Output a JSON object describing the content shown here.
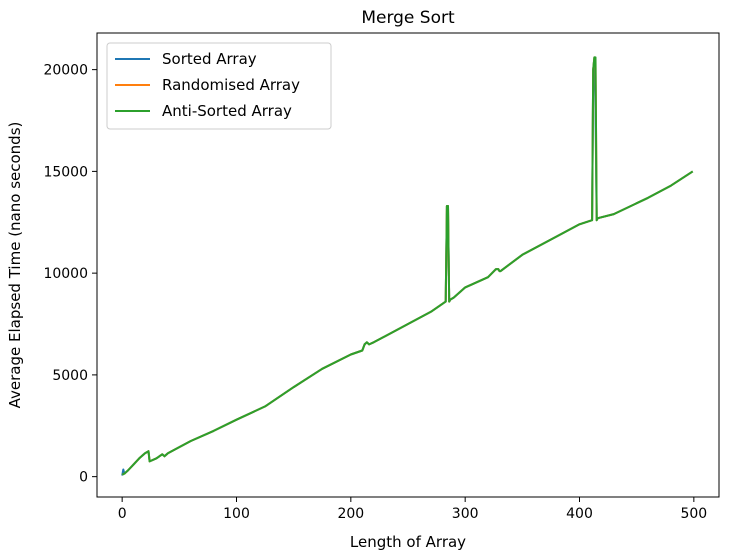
{
  "chart_data": {
    "type": "line",
    "title": "Merge Sort",
    "xlabel": "Length of Array",
    "ylabel": "Average Elapsed Time (nano seconds)",
    "xlim": [
      -22,
      522
    ],
    "ylim": [
      -1000,
      21800
    ],
    "xticks": [
      0,
      100,
      200,
      300,
      400,
      500
    ],
    "yticks": [
      0,
      5000,
      10000,
      15000,
      20000
    ],
    "grid": false,
    "legend_position": "top-left",
    "series": [
      {
        "name": "Sorted Array",
        "color": "#1f77b4",
        "x": [
          0,
          1,
          2,
          5,
          10,
          15,
          20,
          23,
          24,
          30,
          35,
          37,
          40,
          50,
          60,
          80,
          100,
          125,
          150,
          175,
          200,
          210,
          212,
          214,
          216,
          220,
          230,
          250,
          270,
          283,
          284,
          285,
          286,
          287,
          290,
          300,
          320,
          327,
          328,
          329,
          330,
          331,
          350,
          380,
          400,
          411,
          412,
          413,
          414,
          415,
          416,
          430,
          460,
          480,
          499
        ],
        "y": [
          50,
          350,
          150,
          300,
          600,
          900,
          1150,
          1250,
          750,
          900,
          1100,
          1000,
          1150,
          1450,
          1750,
          2250,
          2800,
          3450,
          4400,
          5300,
          6000,
          6200,
          6500,
          6600,
          6500,
          6600,
          6900,
          7500,
          8100,
          8600,
          13300,
          13300,
          8600,
          8700,
          8800,
          9300,
          9800,
          10200,
          10200,
          10200,
          10100,
          10100,
          10900,
          11800,
          12400,
          12600,
          20000,
          20600,
          18000,
          12600,
          12700,
          12900,
          13700,
          14300,
          15000
        ]
      },
      {
        "name": "Randomised Array",
        "color": "#ff7f0e",
        "x": [
          0,
          2,
          5,
          10,
          15,
          20,
          23,
          24,
          30,
          35,
          37,
          40,
          50,
          60,
          80,
          100,
          125,
          150,
          175,
          200,
          210,
          212,
          214,
          216,
          220,
          230,
          250,
          270,
          283,
          284,
          285,
          286,
          287,
          290,
          300,
          320,
          327,
          328,
          329,
          330,
          331,
          350,
          380,
          400,
          411,
          412,
          413,
          414,
          415,
          416,
          430,
          460,
          480,
          499
        ],
        "y": [
          100,
          150,
          300,
          600,
          900,
          1150,
          1250,
          750,
          900,
          1100,
          1000,
          1150,
          1450,
          1750,
          2250,
          2800,
          3450,
          4400,
          5300,
          6000,
          6200,
          6500,
          6600,
          6500,
          6600,
          6900,
          7500,
          8100,
          8600,
          13300,
          13300,
          8600,
          8700,
          8800,
          9300,
          9800,
          10200,
          10200,
          10200,
          10100,
          10100,
          10900,
          11800,
          12400,
          12600,
          20000,
          20600,
          20500,
          12600,
          12700,
          12900,
          13700,
          14300,
          15000
        ]
      },
      {
        "name": "Anti-Sorted Array",
        "color": "#2ca02c",
        "x": [
          0,
          2,
          5,
          10,
          15,
          20,
          23,
          24,
          30,
          35,
          37,
          40,
          50,
          60,
          80,
          100,
          125,
          150,
          175,
          200,
          210,
          212,
          214,
          216,
          220,
          230,
          250,
          270,
          283,
          284,
          285,
          286,
          287,
          290,
          300,
          320,
          327,
          328,
          329,
          330,
          331,
          350,
          380,
          400,
          411,
          412,
          413,
          414,
          415,
          416,
          430,
          460,
          480,
          499
        ],
        "y": [
          100,
          150,
          300,
          600,
          900,
          1150,
          1250,
          750,
          900,
          1100,
          1000,
          1150,
          1450,
          1750,
          2250,
          2800,
          3450,
          4400,
          5300,
          6000,
          6200,
          6500,
          6600,
          6500,
          6600,
          6900,
          7500,
          8100,
          8600,
          13300,
          13300,
          8600,
          8700,
          8800,
          9300,
          9800,
          10200,
          10200,
          10200,
          10100,
          10100,
          10900,
          11800,
          12400,
          12600,
          20000,
          20600,
          20600,
          12600,
          12700,
          12900,
          13700,
          14300,
          15000
        ]
      }
    ]
  }
}
